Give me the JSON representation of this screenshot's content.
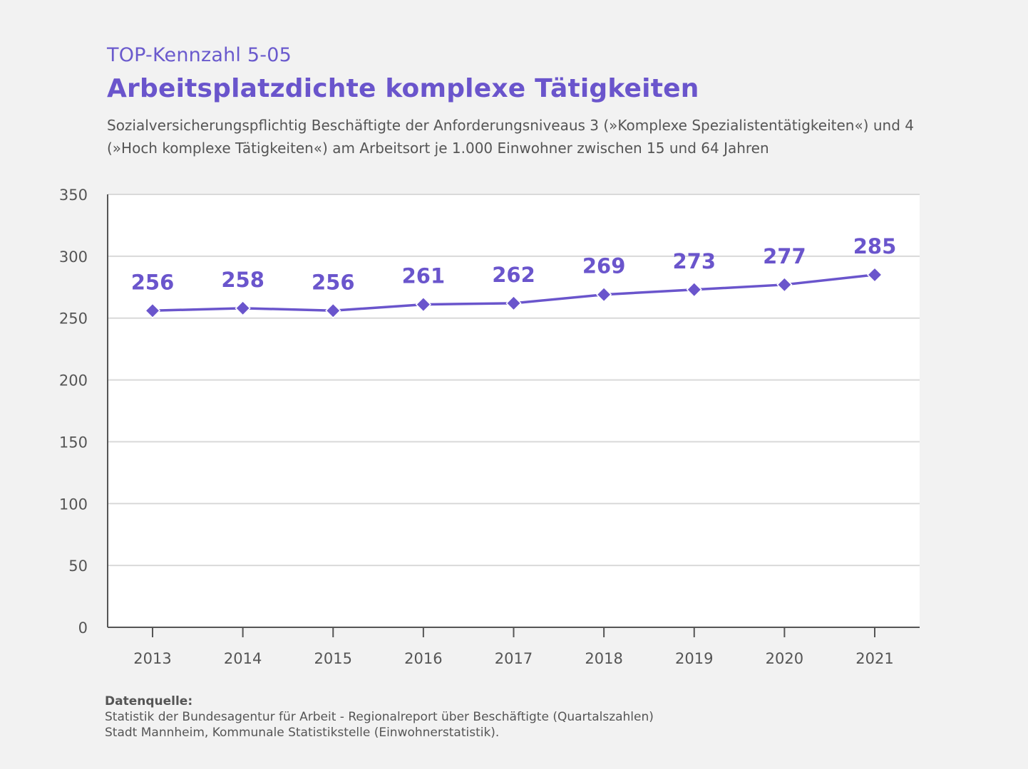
{
  "header": {
    "kicker": "TOP-Kennzahl 5-05",
    "title": "Arbeitsplatzdichte komplexe Tätigkeiten",
    "subtitle_line1": "Sozialversicherungspflichtig Beschäftigte der Anforderungsniveaus 3 (»Komplexe Spezialistentätigkeiten«) und 4",
    "subtitle_line2": "(»Hoch komplexe Tätigkeiten«) am Arbeitsort je 1.000 Einwohner zwischen 15 und 64 Jahren"
  },
  "colors": {
    "accent": "#6a55cc",
    "background": "#f2f2f2",
    "plot_background": "#ffffff",
    "grid": "#d9d9d9",
    "axis": "#555555",
    "text": "#555555"
  },
  "chart_data": {
    "type": "line",
    "title": "Arbeitsplatzdichte komplexe Tätigkeiten",
    "xlabel": "",
    "ylabel": "",
    "categories": [
      "2013",
      "2014",
      "2015",
      "2016",
      "2017",
      "2018",
      "2019",
      "2020",
      "2021"
    ],
    "series": [
      {
        "name": "Arbeitsplatzdichte komplexe Tätigkeiten",
        "values": [
          256,
          258,
          256,
          261,
          262,
          269,
          273,
          277,
          285
        ],
        "marker": "diamond"
      }
    ],
    "data_labels": [
      "256",
      "258",
      "256",
      "261",
      "262",
      "269",
      "273",
      "277",
      "285"
    ],
    "ylim": [
      0,
      350
    ],
    "yticks": [
      0,
      50,
      100,
      150,
      200,
      250,
      300,
      350
    ],
    "ytick_labels": [
      "0",
      "50",
      "100",
      "150",
      "200",
      "250",
      "300",
      "350"
    ],
    "grid": true,
    "legend": "none"
  },
  "source": {
    "label": "Datenquelle:",
    "line1": "Statistik der Bundesagentur für Arbeit - Regionalreport über Beschäftigte (Quartalszahlen)",
    "line2": "Stadt Mannheim, Kommunale Statistikstelle (Einwohnerstatistik)."
  }
}
